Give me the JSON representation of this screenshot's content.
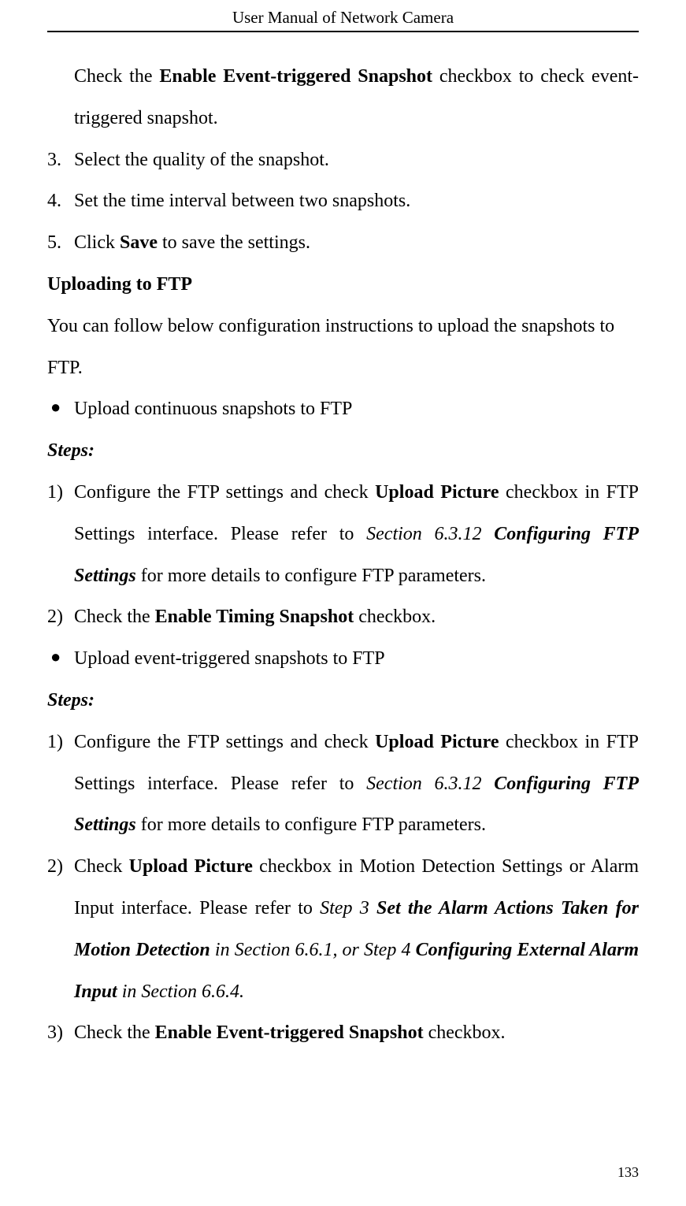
{
  "header": {
    "title": "User Manual of Network Camera"
  },
  "content": {
    "p1_pre": "Check the ",
    "p1_bold": "Enable Event-triggered Snapshot",
    "p1_post": " checkbox to check event-triggered snapshot.",
    "item3_num": "3.",
    "item3_text": "Select the quality of the snapshot.",
    "item4_num": "4.",
    "item4_text": "Set the time interval between two snapshots.",
    "item5_num": "5.",
    "item5_pre": "Click ",
    "item5_bold": "Save",
    "item5_post": " to save the settings.",
    "heading1": "Uploading to FTP",
    "p2": "You can follow below configuration instructions to upload the snapshots to FTP.",
    "bullet1_marker": "●",
    "bullet1_text": "Upload continuous snapshots to FTP",
    "steps1": "Steps:",
    "s1_1_num": "1)",
    "s1_1_pre": "Configure the FTP settings and check ",
    "s1_1_bold1": "Upload Picture",
    "s1_1_mid": " checkbox in FTP Settings interface. Please refer to ",
    "s1_1_ital": "Section 6.3.12 ",
    "s1_1_boldital": "Configuring FTP Settings",
    "s1_1_post": " for more details to configure FTP parameters.",
    "s1_2_num": "2)",
    "s1_2_pre": "Check the ",
    "s1_2_bold": "Enable Timing Snapshot",
    "s1_2_post": " checkbox.",
    "bullet2_marker": "●",
    "bullet2_text": "Upload event-triggered snapshots to FTP",
    "steps2": "Steps:",
    "s2_1_num": "1)",
    "s2_1_pre": "Configure the FTP settings and check ",
    "s2_1_bold1": "Upload Picture",
    "s2_1_mid": " checkbox in FTP Settings interface. Please refer to ",
    "s2_1_ital": "Section 6.3.12 ",
    "s2_1_boldital": "Configuring FTP Settings",
    "s2_1_post": " for more details to configure FTP parameters.",
    "s2_2_num": "2)",
    "s2_2_pre": "Check ",
    "s2_2_bold1": "Upload Picture",
    "s2_2_mid1": " checkbox in Motion Detection Settings or Alarm Input interface. Please refer to ",
    "s2_2_ital1": "Step 3 ",
    "s2_2_boldital1": "Set the Alarm Actions Taken for Motion Detection",
    "s2_2_ital2": " in ",
    "s2_2_ital3": "Section 6.6.1, or Step 4 ",
    "s2_2_boldital2": "Configuring External Alarm Input",
    "s2_2_ital4": " in ",
    "s2_2_ital5": "Section 6.6.4.",
    "s2_3_num": "3)",
    "s2_3_pre": "Check the ",
    "s2_3_bold": "Enable Event-triggered Snapshot",
    "s2_3_post": " checkbox."
  },
  "page_number": "133"
}
